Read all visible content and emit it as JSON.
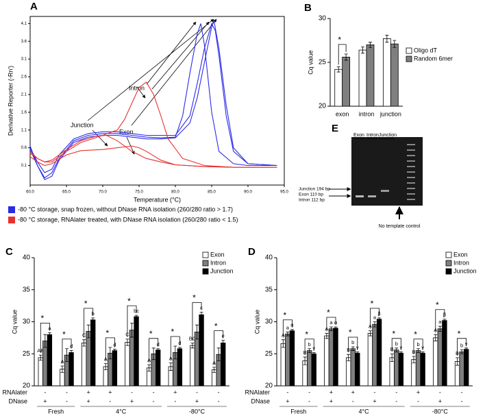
{
  "panel_labels": [
    "A",
    "B",
    "C",
    "D",
    "E"
  ],
  "chart_data": [
    {
      "type": "line",
      "x_label": "Temperature (°C)",
      "y_label": "Derivative Reporter (-Rn')",
      "xlim": [
        60,
        95
      ],
      "ylim": [
        -0.45,
        4.3
      ],
      "xticks": [
        {
          "value": 60,
          "label": "60.0"
        },
        {
          "value": 65,
          "label": "65.0"
        },
        {
          "value": 70,
          "label": "70.0"
        },
        {
          "value": 75,
          "label": "75.0"
        },
        {
          "value": 80,
          "label": "80.0"
        },
        {
          "value": 85,
          "label": "85.0"
        },
        {
          "value": 90,
          "label": "90.0"
        },
        {
          "value": 95,
          "label": "95.0"
        }
      ],
      "yticks": [
        0.1,
        0.6,
        1.1,
        1.6,
        2.1,
        2.6,
        3.1,
        3.6,
        4.1
      ],
      "annotations": [
        "Intron",
        "Junction",
        "Exon"
      ],
      "legend": [
        {
          "label": "-80 °C storage, snap frozen, without DNase RNA isolation (260/280 ratio > 1.7)",
          "color": "#2a2ae8"
        },
        {
          "label": "-80 °C storage, RNAlater treated, with DNase RNA isolation (260/280 ratio < 1.5)",
          "color": "#e83030"
        }
      ],
      "series": [
        {
          "color": "#2a2ae8",
          "x": [
            60,
            61,
            62,
            63,
            64,
            66,
            68,
            70,
            72,
            74,
            76,
            78,
            80,
            81,
            82,
            83,
            83.5,
            84,
            85,
            86,
            88,
            90,
            94
          ],
          "values": [
            0.65,
            0.1,
            -0.25,
            -0.1,
            0.3,
            0.8,
            0.95,
            1.0,
            1.0,
            0.95,
            0.9,
            0.88,
            0.9,
            1.5,
            2.7,
            3.8,
            4.1,
            3.5,
            1.6,
            0.5,
            0.15,
            0.1,
            0.1
          ]
        },
        {
          "color": "#2a2ae8",
          "x": [
            60,
            61,
            62,
            63,
            64,
            66,
            68,
            70,
            72,
            74,
            76,
            78,
            80,
            82,
            83,
            84,
            85,
            85.5,
            86,
            87,
            88,
            90,
            94
          ],
          "values": [
            0.6,
            0.2,
            -0.1,
            0.0,
            0.4,
            0.85,
            1.0,
            1.05,
            1.05,
            1.0,
            0.95,
            0.95,
            0.95,
            1.5,
            2.4,
            3.4,
            4.1,
            3.9,
            3.2,
            1.5,
            0.5,
            0.15,
            0.1
          ]
        },
        {
          "color": "#2a2ae8",
          "x": [
            60,
            61,
            62,
            63,
            64,
            66,
            68,
            70,
            72,
            74,
            76,
            78,
            80,
            82,
            83,
            84,
            85,
            85.3,
            86,
            87,
            88,
            90,
            94
          ],
          "values": [
            0.55,
            0.1,
            -0.3,
            -0.2,
            0.25,
            0.75,
            0.9,
            0.95,
            0.95,
            0.9,
            0.85,
            0.85,
            0.88,
            1.3,
            2.0,
            3.0,
            4.0,
            4.2,
            3.4,
            1.8,
            0.6,
            0.15,
            0.1
          ]
        },
        {
          "color": "#e83030",
          "x": [
            60,
            61,
            62,
            63,
            65,
            67,
            70,
            72,
            73,
            74,
            75,
            76,
            77,
            78,
            79,
            81,
            84,
            88,
            94
          ],
          "values": [
            0.5,
            0.3,
            0.2,
            0.2,
            0.5,
            0.75,
            0.95,
            1.1,
            1.4,
            1.85,
            2.3,
            2.45,
            2.1,
            1.5,
            0.85,
            0.3,
            0.1,
            0.05,
            0.05
          ]
        },
        {
          "color": "#e83030",
          "x": [
            60,
            61,
            62,
            63,
            65,
            67,
            69,
            70.5,
            72,
            74,
            76,
            78,
            80,
            84,
            88,
            94
          ],
          "values": [
            0.45,
            0.3,
            0.2,
            0.25,
            0.55,
            0.8,
            0.92,
            0.95,
            0.8,
            0.5,
            0.3,
            0.2,
            0.12,
            0.07,
            0.05,
            0.05
          ]
        },
        {
          "color": "#e83030",
          "x": [
            60,
            61,
            62,
            63,
            65,
            67,
            70,
            72,
            74,
            75,
            76,
            78,
            80,
            84,
            88,
            94
          ],
          "values": [
            0.35,
            0.2,
            0.1,
            0.15,
            0.4,
            0.52,
            0.55,
            0.6,
            0.65,
            0.6,
            0.5,
            0.25,
            0.12,
            0.07,
            0.05,
            0.05
          ]
        }
      ]
    },
    {
      "type": "bar",
      "y_label": "Cq value",
      "categories": [
        "exon",
        "intron",
        "junction"
      ],
      "ylim": [
        20,
        30
      ],
      "yticks": [
        20,
        25,
        30
      ],
      "stars": [
        "*",
        null,
        null
      ],
      "series": [
        {
          "name": "Oligo dT",
          "color": "#ffffff",
          "values": [
            24.2,
            26.4,
            27.7
          ],
          "errors": [
            0.3,
            0.35,
            0.4
          ]
        },
        {
          "name": "Random 6mer",
          "color": "#7f7f7f",
          "values": [
            25.6,
            27.0,
            27.1
          ],
          "errors": [
            0.35,
            0.3,
            0.4
          ]
        }
      ]
    },
    {
      "type": "bar",
      "y_label": "Cq value",
      "categories": [
        null,
        null,
        null,
        null,
        null,
        null,
        null,
        null,
        null
      ],
      "ylim": [
        20,
        40
      ],
      "yticks": [
        20,
        25,
        30,
        35,
        40
      ],
      "stars": [
        "*",
        "*",
        "*",
        "*",
        "*",
        "*",
        "*",
        "*",
        "*"
      ],
      "condition_rows": [
        {
          "label": "RNAlater",
          "values": [
            "-",
            "-",
            "+",
            "+",
            "-",
            "-",
            "+",
            "-",
            "-"
          ]
        },
        {
          "label": "DNase",
          "values": [
            "+",
            "-",
            "+",
            "-",
            "+",
            "-",
            "-",
            "+",
            "-"
          ]
        }
      ],
      "groups": [
        "Fresh",
        "4°C",
        "-80°C"
      ],
      "series": [
        {
          "name": "Exon",
          "color": "#ffffff",
          "values": [
            24.4,
            22.6,
            26.7,
            23.0,
            26.8,
            22.8,
            23.0,
            26.3,
            22.5
          ],
          "errors": [
            0.4,
            0.5,
            0.5,
            0.5,
            0.5,
            0.5,
            0.6,
            0.4,
            0.4
          ],
          "letters": [
            "AB",
            "A",
            "C",
            "A",
            "C",
            "A",
            "A",
            "BC",
            "A"
          ]
        },
        {
          "name": "Intron",
          "color": "#7f7f7f",
          "values": [
            27.0,
            24.8,
            28.5,
            25.1,
            28.7,
            25.0,
            25.2,
            28.4,
            24.9
          ],
          "errors": [
            1.0,
            1.0,
            1.0,
            0.9,
            1.1,
            0.9,
            1.0,
            1.1,
            1.0
          ],
          "letters": [
            null,
            null,
            null,
            null,
            null,
            null,
            null,
            null,
            null
          ]
        },
        {
          "name": "Junction",
          "color": "#000000",
          "values": [
            28.0,
            25.2,
            30.3,
            25.5,
            30.8,
            25.6,
            25.8,
            31.1,
            26.7
          ],
          "errors": [
            0.3,
            0.3,
            0.3,
            0.2,
            0.2,
            0.2,
            0.2,
            0.4,
            0.4
          ],
          "letters": [
            "a",
            "d",
            "b",
            "d",
            "bc",
            "d",
            "d",
            "c",
            "e"
          ]
        }
      ]
    },
    {
      "type": "bar",
      "y_label": "Cq value",
      "categories": [
        null,
        null,
        null,
        null,
        null,
        null,
        null,
        null,
        null
      ],
      "ylim": [
        20,
        40
      ],
      "yticks": [
        20,
        25,
        30,
        35,
        40
      ],
      "stars": [
        "*",
        "*",
        "*",
        "*",
        "*",
        "*",
        "*",
        "*",
        "*"
      ],
      "condition_rows": [
        {
          "label": "RNAlater",
          "values": [
            "-",
            "-",
            "+",
            "+",
            "-",
            "-",
            "+",
            "-",
            "-"
          ]
        },
        {
          "label": "DNase",
          "values": [
            "+",
            "-",
            "+",
            "-",
            "+",
            "-",
            "-",
            "+",
            "-"
          ]
        }
      ],
      "groups": [
        "Fresh",
        "4°C",
        "-80°C"
      ],
      "series": [
        {
          "name": "Exon",
          "color": "#ffffff",
          "values": [
            26.6,
            23.9,
            27.8,
            24.4,
            28.2,
            24.4,
            24.1,
            27.5,
            23.8
          ],
          "errors": [
            0.6,
            0.6,
            0.4,
            0.5,
            0.4,
            0.6,
            0.5,
            0.5,
            0.6
          ],
          "letters": [
            "A",
            "B",
            "A",
            "B",
            "A",
            "B",
            "B",
            "A",
            "B"
          ]
        },
        {
          "name": "Intron",
          "color": "#7f7f7f",
          "values": [
            28.1,
            25.5,
            28.9,
            25.8,
            29.6,
            25.6,
            25.5,
            28.9,
            25.3
          ],
          "errors": [
            0.3,
            0.3,
            0.3,
            0.3,
            0.4,
            0.3,
            0.3,
            0.4,
            0.3
          ],
          "letters": [
            "a",
            "b",
            "a",
            "b",
            "a",
            "b",
            "b",
            "a",
            "b"
          ]
        },
        {
          "name": "Junction",
          "color": "#000000",
          "values": [
            28.6,
            25.0,
            29.0,
            25.1,
            30.4,
            25.1,
            25.1,
            30.2,
            25.7
          ],
          "errors": [
            0.2,
            0.2,
            0.2,
            0.2,
            0.2,
            0.2,
            0.2,
            0.2,
            0.2
          ],
          "letters": [
            "α",
            "γ",
            "α",
            "γ",
            "β",
            "γ",
            "γ",
            "β",
            "γ"
          ]
        }
      ]
    }
  ],
  "gel": {
    "lanes": [
      "Exon",
      "Intron",
      "Junction"
    ],
    "bands": [
      "Junction 194 bp",
      "Exon 110 bp",
      "Intron 112 bp"
    ],
    "note": "No template control"
  }
}
